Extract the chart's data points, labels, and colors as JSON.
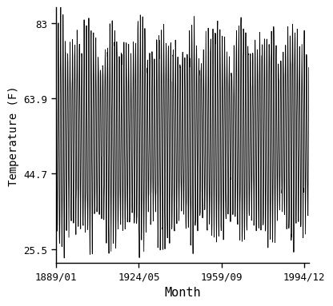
{
  "title": "",
  "xlabel": "Month",
  "ylabel": "Temperature (F)",
  "yticks": [
    25.5,
    44.7,
    63.9,
    83
  ],
  "ytick_labels": [
    "25.5",
    "44.7",
    "63.9",
    "83"
  ],
  "xtick_positions_years": [
    1889.0,
    1924.3333,
    1959.6667,
    1994.9167
  ],
  "xtick_labels": [
    "1889/01",
    "1924/05",
    "1959/09",
    "1994/12"
  ],
  "start_year": 1889,
  "start_month": 1,
  "end_year": 1996,
  "end_month": 12,
  "mean_temp": 54.2,
  "amplitude": 23.5,
  "line_color": "#000000",
  "line_width": 0.6,
  "background_color": "#ffffff",
  "ylim": [
    22.0,
    87.0
  ],
  "xlim_start": 1889.0,
  "xlim_end": 1997.0,
  "font_family": "monospace",
  "tick_labelsize": 9,
  "label_fontsize": 10,
  "xlabel_fontsize": 11
}
